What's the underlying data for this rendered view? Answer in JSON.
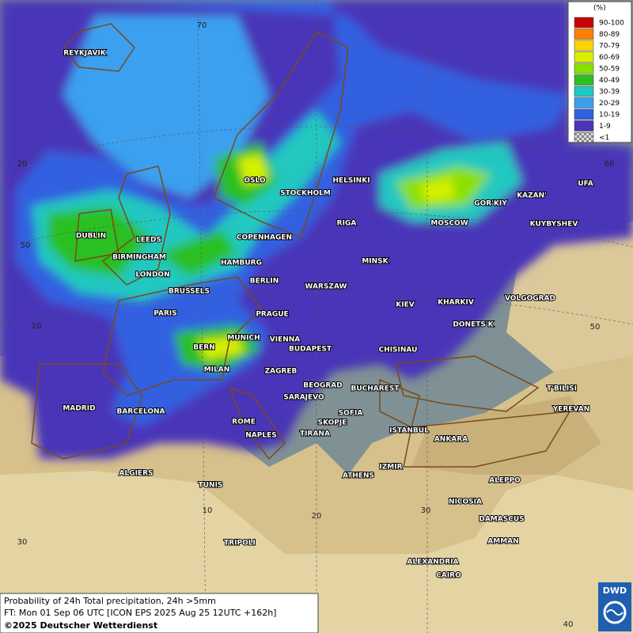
{
  "legend": {
    "title": "(%)",
    "items": [
      {
        "label": "90-100",
        "color": "#c80000"
      },
      {
        "label": "80-89",
        "color": "#ff8000"
      },
      {
        "label": "70-79",
        "color": "#ffd400"
      },
      {
        "label": "60-69",
        "color": "#d8f000"
      },
      {
        "label": "50-59",
        "color": "#8ce000"
      },
      {
        "label": "40-49",
        "color": "#2cc020"
      },
      {
        "label": "30-39",
        "color": "#20c8c0"
      },
      {
        "label": "20-29",
        "color": "#3aa0f0"
      },
      {
        "label": "10-19",
        "color": "#3060e0"
      },
      {
        "label": "1-9",
        "color": "#4a34b8"
      },
      {
        "label": "<1",
        "color": "checker"
      }
    ]
  },
  "grid_labels": [
    "70",
    "20",
    "60",
    "50",
    "10",
    "50",
    "10",
    "20",
    "30",
    "30",
    "40"
  ],
  "cities": [
    "REYKJAVIK",
    "OSLO",
    "STOCKHOLM",
    "HELSINKI",
    "RIGA",
    "MOSCOW",
    "GOR'KIY",
    "KAZAN'",
    "UFA",
    "KUYBYSHEV",
    "DUBLIN",
    "LEEDS",
    "BIRMINGHAM",
    "LONDON",
    "COPENHAGEN",
    "HAMBURG",
    "BERLIN",
    "MINSK",
    "WARSZAW",
    "KIEV",
    "KHARKIV",
    "VOLGOGRAD",
    "BRUSSELS",
    "PARIS",
    "PRAGUE",
    "DONETS'K",
    "MUNICH",
    "VIENNA",
    "BERN",
    "BUDAPEST",
    "CHISINAU",
    "MILAN",
    "ZAGREB",
    "BEOGRAD",
    "BUCHAREST",
    "T'BILISI",
    "SARAJEVO",
    "SOFIA",
    "MADRID",
    "BARCELONA",
    "ROME",
    "SKOPJE",
    "YEREVAN",
    "ISTANBUL",
    "TIRANA",
    "NAPLES",
    "ANKARA",
    "IZMIR",
    "ALGIERS",
    "ATHENS",
    "ALEPPO",
    "TUNIS",
    "NICOSIA",
    "DAMASCUS",
    "AMMAN",
    "TRIPOLI",
    "ALEXANDRIA",
    "CAIRO"
  ],
  "footer": {
    "line1": "Probability of 24h Total precipitation, 24h >5mm",
    "line2": "FT: Mon 01 Sep 06 UTC [ICON EPS 2025 Aug 25 12UTC +162h]",
    "line3": "©2025 Deutscher Wetterdienst"
  },
  "logo": "DWD"
}
